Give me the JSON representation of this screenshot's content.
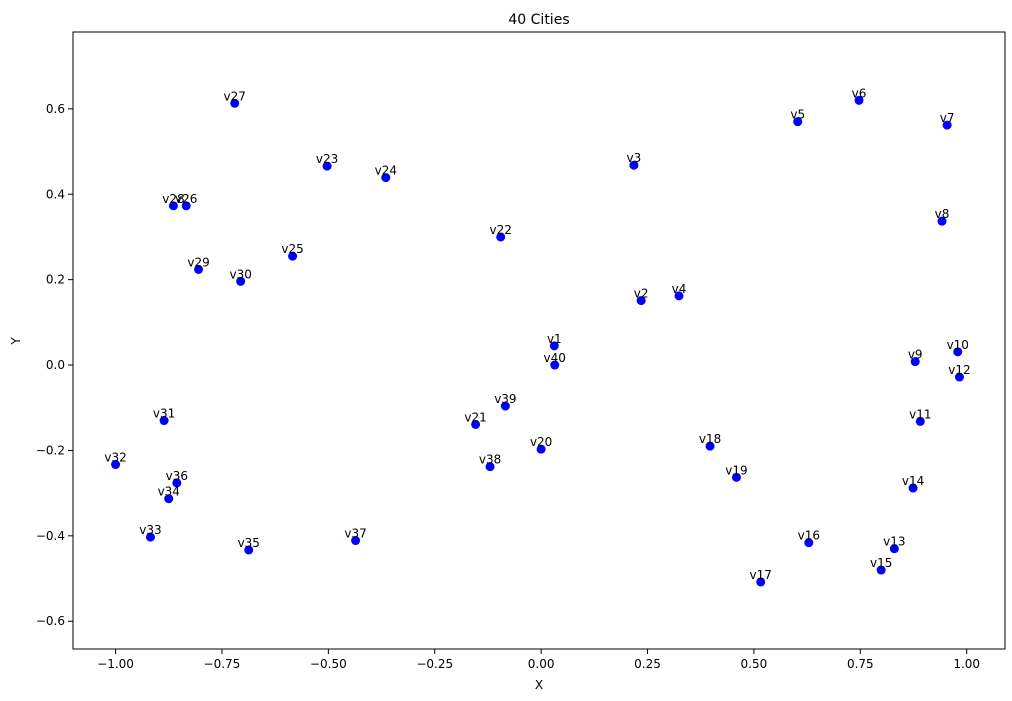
{
  "chart_data": {
    "type": "scatter",
    "title": "40 Cities",
    "xlabel": "X",
    "ylabel": "Y",
    "xlim": [
      -1.1,
      1.09
    ],
    "ylim": [
      -0.665,
      0.78
    ],
    "xticks": [
      -1.0,
      -0.75,
      -0.5,
      -0.25,
      0.0,
      0.25,
      0.5,
      0.75,
      1.0
    ],
    "xtick_labels": [
      "−1.00",
      "−0.75",
      "−0.50",
      "−0.25",
      "0.00",
      "0.25",
      "0.50",
      "0.75",
      "1.00"
    ],
    "yticks": [
      -0.6,
      -0.4,
      -0.2,
      0.0,
      0.2,
      0.4,
      0.6
    ],
    "ytick_labels": [
      "−0.6",
      "−0.4",
      "−0.2",
      "0.0",
      "0.2",
      "0.4",
      "0.6"
    ],
    "grid": false,
    "marker_color": "#0000ff",
    "points": [
      {
        "label": "v1",
        "x": 0.031,
        "y": 0.045
      },
      {
        "label": "v2",
        "x": 0.235,
        "y": 0.151
      },
      {
        "label": "v3",
        "x": 0.218,
        "y": 0.468
      },
      {
        "label": "v4",
        "x": 0.324,
        "y": 0.162
      },
      {
        "label": "v5",
        "x": 0.603,
        "y": 0.57
      },
      {
        "label": "v6",
        "x": 0.747,
        "y": 0.62
      },
      {
        "label": "v7",
        "x": 0.954,
        "y": 0.562
      },
      {
        "label": "v8",
        "x": 0.942,
        "y": 0.337
      },
      {
        "label": "v9",
        "x": 0.879,
        "y": 0.008
      },
      {
        "label": "v10",
        "x": 0.979,
        "y": 0.031
      },
      {
        "label": "v11",
        "x": 0.891,
        "y": -0.132
      },
      {
        "label": "v12",
        "x": 0.983,
        "y": -0.028
      },
      {
        "label": "v13",
        "x": 0.83,
        "y": -0.43
      },
      {
        "label": "v14",
        "x": 0.874,
        "y": -0.288
      },
      {
        "label": "v15",
        "x": 0.799,
        "y": -0.48
      },
      {
        "label": "v16",
        "x": 0.629,
        "y": -0.416
      },
      {
        "label": "v17",
        "x": 0.516,
        "y": -0.508
      },
      {
        "label": "v18",
        "x": 0.397,
        "y": -0.19
      },
      {
        "label": "v19",
        "x": 0.459,
        "y": -0.263
      },
      {
        "label": "v20",
        "x": 0.0,
        "y": -0.197
      },
      {
        "label": "v21",
        "x": -0.154,
        "y": -0.139
      },
      {
        "label": "v22",
        "x": -0.095,
        "y": 0.3
      },
      {
        "label": "v23",
        "x": -0.503,
        "y": 0.466
      },
      {
        "label": "v24",
        "x": -0.365,
        "y": 0.439
      },
      {
        "label": "v25",
        "x": -0.584,
        "y": 0.255
      },
      {
        "label": "v26",
        "x": -0.834,
        "y": 0.373
      },
      {
        "label": "v27",
        "x": -0.72,
        "y": 0.613
      },
      {
        "label": "v28",
        "x": -0.864,
        "y": 0.373
      },
      {
        "label": "v29",
        "x": -0.805,
        "y": 0.224
      },
      {
        "label": "v30",
        "x": -0.706,
        "y": 0.196
      },
      {
        "label": "v31",
        "x": -0.886,
        "y": -0.13
      },
      {
        "label": "v32",
        "x": -1.0,
        "y": -0.233
      },
      {
        "label": "v33",
        "x": -0.918,
        "y": -0.403
      },
      {
        "label": "v34",
        "x": -0.875,
        "y": -0.313
      },
      {
        "label": "v35",
        "x": -0.687,
        "y": -0.433
      },
      {
        "label": "v36",
        "x": -0.856,
        "y": -0.276
      },
      {
        "label": "v37",
        "x": -0.436,
        "y": -0.411
      },
      {
        "label": "v38",
        "x": -0.12,
        "y": -0.238
      },
      {
        "label": "v39",
        "x": -0.084,
        "y": -0.096
      },
      {
        "label": "v40",
        "x": 0.032,
        "y": 0.0
      }
    ]
  }
}
